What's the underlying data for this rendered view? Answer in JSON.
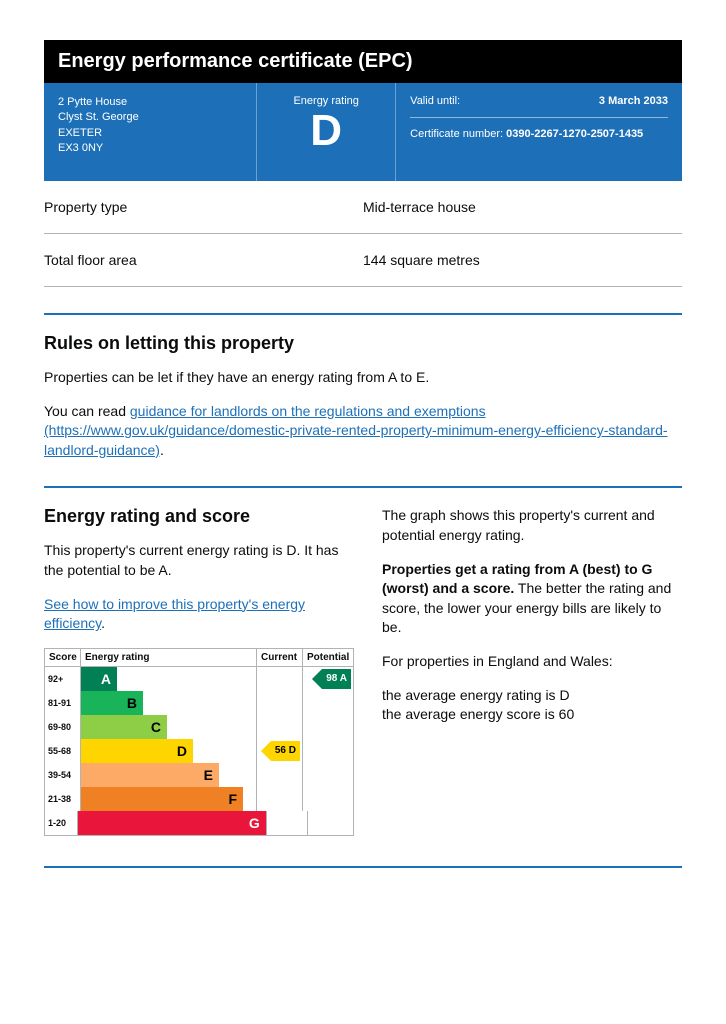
{
  "title": "Energy performance certificate (EPC)",
  "address": {
    "line1": "2 Pytte House",
    "line2": "Clyst St. George",
    "city": "EXETER",
    "postcode": "EX3 0NY"
  },
  "rating_block": {
    "label": "Energy rating",
    "rating": "D"
  },
  "valid": {
    "label": "Valid until:",
    "value": "3 March 2033"
  },
  "cert": {
    "label": "Certificate number:",
    "value": "0390-2267-1270-2507-1435"
  },
  "props": {
    "type_label": "Property type",
    "type_value": "Mid-terrace house",
    "area_label": "Total floor area",
    "area_value": "144 square metres"
  },
  "letting": {
    "heading": "Rules on letting this property",
    "p1": "Properties can be let if they have an energy rating from A to E.",
    "p2_prefix": "You can read ",
    "link_text": "guidance for landlords on the regulations and exemptions (https://www.gov.uk/guidance/domestic-private-rented-property-minimum-energy-efficiency-standard-landlord-guidance)",
    "p2_suffix": "."
  },
  "rating_section": {
    "heading": "Energy rating and score",
    "p1": "This property's current energy rating is D. It has the potential to be A.",
    "link": "See how to improve this property's energy efficiency",
    "link_suffix": ".",
    "right_p1": "The graph shows this property's current and potential energy rating.",
    "right_p2_bold": "Properties get a rating from A (best) to G (worst) and a score.",
    "right_p2_rest": " The better the rating and score, the lower your energy bills are likely to be.",
    "right_p3": "For properties in England and Wales:",
    "right_p4a": "the average energy rating is D",
    "right_p4b": "the average energy score is 60"
  },
  "chart": {
    "head_score": "Score",
    "head_rating": "Energy rating",
    "head_current": "Current",
    "head_potential": "Potential",
    "bands": [
      {
        "score": "92+",
        "letter": "A",
        "width": 36,
        "color": "#008054"
      },
      {
        "score": "81-91",
        "letter": "B",
        "width": 62,
        "color": "#19b459"
      },
      {
        "score": "69-80",
        "letter": "C",
        "width": 86,
        "color": "#8dce46"
      },
      {
        "score": "55-68",
        "letter": "D",
        "width": 112,
        "color": "#ffd500"
      },
      {
        "score": "39-54",
        "letter": "E",
        "width": 138,
        "color": "#fcaa65"
      },
      {
        "score": "21-38",
        "letter": "F",
        "width": 162,
        "color": "#ef8023"
      },
      {
        "score": "1-20",
        "letter": "G",
        "width": 188,
        "color": "#e9153b"
      }
    ],
    "current": {
      "band_index": 3,
      "text": "56  D",
      "color": "#ffd500"
    },
    "potential": {
      "band_index": 0,
      "text": "98  A",
      "color": "#008054",
      "text_color": "#ffffff"
    }
  }
}
